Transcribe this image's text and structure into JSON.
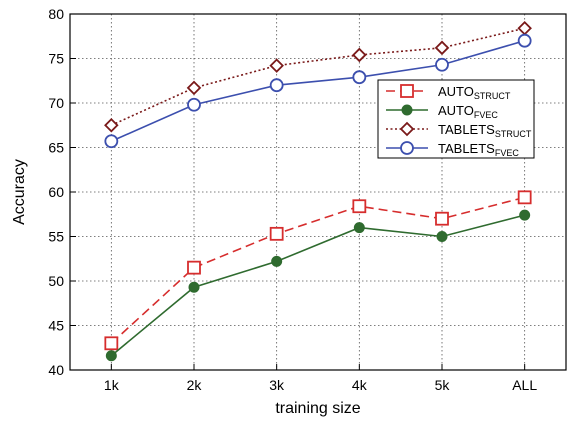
{
  "chart_data": {
    "type": "line",
    "xlabel": "training size",
    "ylabel": "Accuracy",
    "categories": [
      "1k",
      "2k",
      "3k",
      "4k",
      "5k",
      "ALL"
    ],
    "ylim": [
      40,
      80
    ],
    "yticks": [
      40,
      45,
      50,
      55,
      60,
      65,
      70,
      75,
      80
    ],
    "grid": true,
    "legend_position": "right",
    "series": [
      {
        "name": "AUTO",
        "name_sub": "STRUCT",
        "values": [
          43.0,
          51.5,
          55.3,
          58.4,
          57.0,
          59.4
        ],
        "color": "#d62d2d",
        "line": "dashed",
        "marker": "square-open"
      },
      {
        "name": "AUTO",
        "name_sub": "FVEC",
        "values": [
          41.6,
          49.3,
          52.2,
          56.0,
          55.0,
          57.4
        ],
        "color": "#2f6b2f",
        "line": "solid",
        "marker": "circle-filled"
      },
      {
        "name": "TABLETS",
        "name_sub": "STRUCT",
        "values": [
          67.5,
          71.7,
          74.2,
          75.4,
          76.2,
          78.4
        ],
        "color": "#7a1a1a",
        "line": "dotted",
        "marker": "diamond-open"
      },
      {
        "name": "TABLETS",
        "name_sub": "FVEC",
        "values": [
          65.7,
          69.8,
          72.0,
          72.9,
          74.3,
          77.0
        ],
        "color": "#3c4fae",
        "line": "solid",
        "marker": "circle-open"
      }
    ]
  }
}
